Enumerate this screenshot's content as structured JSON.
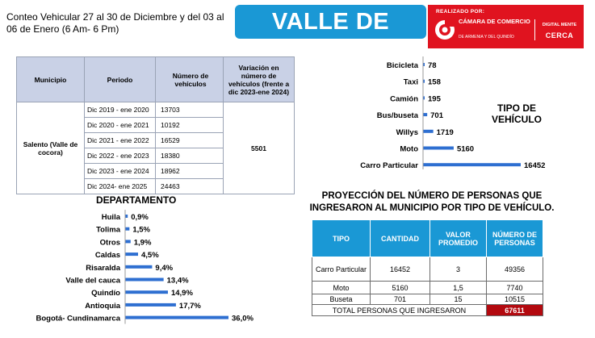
{
  "header": {
    "description": "Conteo Vehicular 27 al 30 de Diciembre y del 03 al 06 de Enero (6 Am- 6 Pm)",
    "title": "VALLE DE COCORA",
    "sponsor": {
      "realizado": "REALIZADO POR:",
      "camara": "CÁMARA DE COMERCIO",
      "camara_sub": "DE ARMENIA Y DEL QUINDÍO",
      "digital": "DIGITAL MENTE",
      "cerca": "CERCA",
      "bg_color": "#e0131f"
    }
  },
  "period_table": {
    "headers": [
      "Municipio",
      "Periodo",
      "Número de vehículos",
      "Variación en número de vehículos (frente a dic 2023-ene 2024)"
    ],
    "municipio": "Salento (Valle de cocora)",
    "rows": [
      {
        "periodo": "Dic 2019 - ene  2020",
        "numero": "13703"
      },
      {
        "periodo": "Dic 2020 - ene 2021",
        "numero": "10192"
      },
      {
        "periodo": "Dic 2021 - ene 2022",
        "numero": "16529"
      },
      {
        "periodo": "Dic 2022 - ene 2023",
        "numero": "18380"
      },
      {
        "periodo": "Dic 2023 - ene 2024",
        "numero": "18962"
      },
      {
        "periodo": "Dic 2024- ene 2025",
        "numero": "24463"
      }
    ],
    "variacion": "5501"
  },
  "chart_data": [
    {
      "type": "bar",
      "orientation": "horizontal",
      "title": "TIPO DE VEHÍCULO",
      "categories": [
        "Bicicleta",
        "Taxi",
        "Camión",
        "Bus/buseta",
        "Willys",
        "Moto",
        "Carro Particular"
      ],
      "values": [
        78,
        158,
        195,
        701,
        1719,
        5160,
        16452
      ],
      "labels": [
        "78",
        "158",
        "195",
        "701",
        "1719",
        "5160",
        "16452"
      ],
      "xlim": [
        0,
        16452
      ],
      "bar_color": "#2e6fd1",
      "grid": false
    },
    {
      "type": "bar",
      "orientation": "horizontal",
      "title": "DEPARTAMENTO",
      "categories": [
        "Huila",
        "Tolima",
        "Otros",
        "Caldas",
        "Risaralda",
        "Valle del cauca",
        "Quindío",
        "Antioquia",
        "Bogotá- Cundinamarca"
      ],
      "values": [
        0.9,
        1.5,
        1.9,
        4.5,
        9.4,
        13.4,
        14.9,
        17.7,
        36.0
      ],
      "labels": [
        "0,9%",
        "1,5%",
        "1,9%",
        "4,5%",
        "9,4%",
        "13,4%",
        "14,9%",
        "17,7%",
        "36,0%"
      ],
      "xlim": [
        0,
        36.0
      ],
      "bar_color": "#2e6fd1",
      "grid": false
    }
  ],
  "projection": {
    "title": "PROYECCIÓN DEL NÚMERO DE PERSONAS QUE INGRESARON AL MUNICIPIO POR TIPO DE VEHÍCULO.",
    "headers": [
      "TIPO",
      "CANTIDAD",
      "VALOR PROMEDIO",
      "NÚMERO DE PERSONAS"
    ],
    "rows": [
      {
        "tipo": "Carro Particular",
        "cantidad": "16452",
        "promedio": "3",
        "personas": "49356"
      },
      {
        "tipo": "Moto",
        "cantidad": "5160",
        "promedio": "1,5",
        "personas": "7740"
      },
      {
        "tipo": "Buseta",
        "cantidad": "701",
        "promedio": "15",
        "personas": "10515"
      }
    ],
    "total_label": "TOTAL PERSONAS QUE INGRESARON",
    "total_value": "67611",
    "header_color": "#1a98d5",
    "total_color": "#b3090f"
  }
}
